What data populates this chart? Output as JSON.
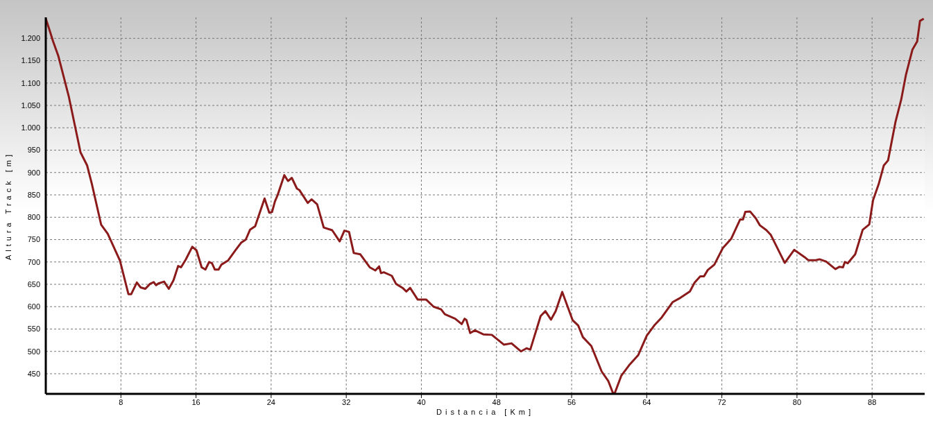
{
  "chart_data": {
    "type": "line",
    "xlabel": "Distancia [Km]",
    "ylabel": "Altura Track [m]",
    "xlim": [
      0,
      93.6
    ],
    "ylim": [
      405,
      1247
    ],
    "xticks": [
      8,
      16,
      24,
      32,
      40,
      48,
      56,
      64,
      72,
      80,
      88
    ],
    "yticks": [
      450,
      500,
      550,
      600,
      650,
      700,
      750,
      800,
      850,
      900,
      950,
      {
        "value": 1000,
        "label": "1.000"
      },
      {
        "value": 1050,
        "label": "1.050"
      },
      {
        "value": 1100,
        "label": "1.100"
      },
      {
        "value": 1150,
        "label": "1.150"
      },
      {
        "value": 1200,
        "label": "1.200"
      }
    ],
    "grid": true,
    "marker": "none",
    "series": [
      {
        "color": "#8b1a1a",
        "x": [
          0,
          0.36,
          0.78,
          1.33,
          2.44,
          3.7,
          4.4,
          4.9,
          5.9,
          6.6,
          7.9,
          8.8,
          9.1,
          9.7,
          10.1,
          10.6,
          11.1,
          11.5,
          11.75,
          12.0,
          12.6,
          13.1,
          13.6,
          14.1,
          14.4,
          14.9,
          15.6,
          16.05,
          16.6,
          17.0,
          17.4,
          17.7,
          18.0,
          18.4,
          18.7,
          19.4,
          20.2,
          20.8,
          21.3,
          21.75,
          22.3,
          23.3,
          23.8,
          24.1,
          24.4,
          24.7,
          25.4,
          25.8,
          26.2,
          26.75,
          27.0,
          27.9,
          28.3,
          28.9,
          29.6,
          30.5,
          31.3,
          31.8,
          32.3,
          32.8,
          33.5,
          34.5,
          35.1,
          35.5,
          35.7,
          36.0,
          36.85,
          37.3,
          38.0,
          38.4,
          38.8,
          39.6,
          40.5,
          41.3,
          42.1,
          42.5,
          43.6,
          44.3,
          44.6,
          44.8,
          45.2,
          45.7,
          46.6,
          47.5,
          48.8,
          49.6,
          50.6,
          51.2,
          51.6,
          52.7,
          53.2,
          53.8,
          54.3,
          55.0,
          56.1,
          56.7,
          57.2,
          58.1,
          59.2,
          59.9,
          60.4,
          60.6,
          61.3,
          62.2,
          63.1,
          64.0,
          64.8,
          65.6,
          66.75,
          67.6,
          68.6,
          69.1,
          69.7,
          70.1,
          70.5,
          71.2,
          72.1,
          73.0,
          73.95,
          74.25,
          74.5,
          75.0,
          75.6,
          76.05,
          76.75,
          77.2,
          78.7,
          79.7,
          80.8,
          81.2,
          82.0,
          82.4,
          83.1,
          84.1,
          84.5,
          84.9,
          85.1,
          85.4,
          86.2,
          87.0,
          87.7,
          88.1,
          88.7,
          89.25,
          89.7,
          90.5,
          91.1,
          91.6,
          92.3,
          92.8,
          93.1,
          93.5
        ],
        "values": [
          1244,
          1221,
          1193,
          1161,
          1071,
          945,
          916,
          875,
          783,
          763,
          703,
          628,
          628,
          654,
          643,
          640,
          651,
          655,
          648,
          652,
          656,
          640,
          659,
          691,
          688,
          705,
          734,
          726,
          688,
          683,
          700,
          697,
          683,
          683,
          694,
          703,
          726,
          743,
          750,
          772,
          780,
          842,
          810,
          812,
          835,
          850,
          894,
          881,
          888,
          864,
          861,
          832,
          840,
          829,
          777,
          771,
          746,
          770,
          767,
          720,
          717,
          688,
          681,
          690,
          675,
          677,
          669,
          651,
          642,
          634,
          642,
          616,
          616,
          600,
          594,
          583,
          573,
          561,
          573,
          570,
          541,
          547,
          538,
          537,
          515,
          518,
          500,
          507,
          504,
          579,
          590,
          571,
          590,
          633,
          570,
          558,
          532,
          512,
          455,
          434,
          407,
          407,
          446,
          471,
          492,
          535,
          558,
          576,
          610,
          620,
          634,
          654,
          668,
          668,
          682,
          694,
          731,
          752,
          795,
          795,
          812,
          813,
          798,
          782,
          771,
          761,
          698,
          727,
          711,
          704,
          704,
          706,
          701,
          684,
          689,
          688,
          700,
          697,
          717,
          772,
          784,
          838,
          874,
          916,
          927,
          1014,
          1063,
          1118,
          1175,
          1193,
          1239,
          1244
        ]
      }
    ]
  }
}
